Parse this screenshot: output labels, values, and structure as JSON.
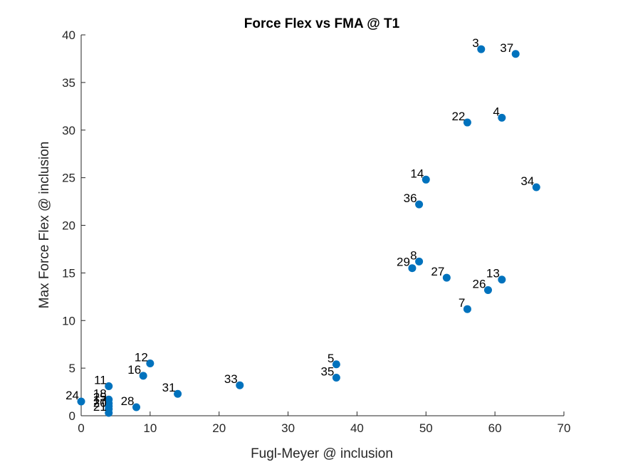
{
  "chart_data": {
    "type": "scatter",
    "title": "Force Flex vs FMA @ T1",
    "xlabel": "Fugl-Meyer @ inclusion",
    "ylabel": "Max Force Flex @ inclusion",
    "xlim": [
      0,
      70
    ],
    "ylim": [
      0,
      40
    ],
    "xticks": [
      0,
      10,
      20,
      30,
      40,
      50,
      60,
      70
    ],
    "yticks": [
      0,
      5,
      10,
      15,
      20,
      25,
      30,
      35,
      40
    ],
    "grid": false,
    "marker_color": "#0072BD",
    "points": [
      {
        "label": "3",
        "x": 58,
        "y": 38.5
      },
      {
        "label": "37",
        "x": 63,
        "y": 38.0
      },
      {
        "label": "22",
        "x": 56,
        "y": 30.8
      },
      {
        "label": "4",
        "x": 61,
        "y": 31.3
      },
      {
        "label": "14",
        "x": 50,
        "y": 24.8
      },
      {
        "label": "34",
        "x": 66,
        "y": 24.0
      },
      {
        "label": "36",
        "x": 49,
        "y": 22.2
      },
      {
        "label": "8",
        "x": 49,
        "y": 16.2
      },
      {
        "label": "29",
        "x": 48,
        "y": 15.5
      },
      {
        "label": "27",
        "x": 53,
        "y": 14.5
      },
      {
        "label": "13",
        "x": 61,
        "y": 14.3
      },
      {
        "label": "26",
        "x": 59,
        "y": 13.2
      },
      {
        "label": "7",
        "x": 56,
        "y": 11.2
      },
      {
        "label": "5",
        "x": 37,
        "y": 5.4
      },
      {
        "label": "35",
        "x": 37,
        "y": 4.0
      },
      {
        "label": "12",
        "x": 10,
        "y": 5.5
      },
      {
        "label": "16",
        "x": 9,
        "y": 4.2
      },
      {
        "label": "11",
        "x": 4,
        "y": 3.1
      },
      {
        "label": "31",
        "x": 14,
        "y": 2.3
      },
      {
        "label": "33",
        "x": 23,
        "y": 3.2
      },
      {
        "label": "24",
        "x": 0,
        "y": 1.5
      },
      {
        "label": "18",
        "x": 4,
        "y": 1.7
      },
      {
        "label": "25",
        "x": 4,
        "y": 1.3
      },
      {
        "label": "17",
        "x": 4,
        "y": 1.0
      },
      {
        "label": "20",
        "x": 4,
        "y": 0.7
      },
      {
        "label": "21",
        "x": 4,
        "y": 0.3
      },
      {
        "label": "28",
        "x": 8,
        "y": 0.9
      }
    ]
  }
}
